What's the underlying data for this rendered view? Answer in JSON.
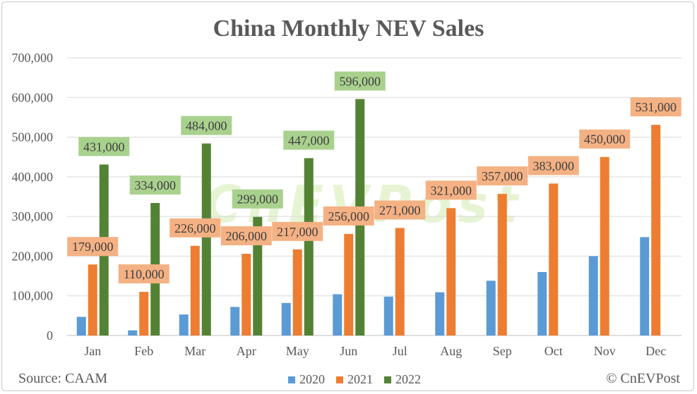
{
  "page": {
    "title": "China Monthly NEV Sales",
    "source": "Source: CAAM",
    "copyright": "© CnEVPost",
    "watermark": "CnEVPost"
  },
  "chart_data": {
    "type": "bar",
    "title": "China Monthly NEV Sales",
    "categories": [
      "Jan",
      "Feb",
      "Mar",
      "Apr",
      "May",
      "Jun",
      "Jul",
      "Aug",
      "Sep",
      "Oct",
      "Nov",
      "Dec"
    ],
    "ylim": [
      0,
      700000
    ],
    "yticks": [
      0,
      100000,
      200000,
      300000,
      400000,
      500000,
      600000,
      700000
    ],
    "ytick_labels": [
      "0",
      "100,000",
      "200,000",
      "300,000",
      "400,000",
      "500,000",
      "600,000",
      "700,000"
    ],
    "grid": true,
    "legend_position": "bottom",
    "series": [
      {
        "name": "2020",
        "color": "#5b9bd5",
        "values": [
          47000,
          13000,
          53000,
          72000,
          82000,
          104000,
          98000,
          109000,
          138000,
          160000,
          200000,
          248000
        ],
        "labels": null
      },
      {
        "name": "2021",
        "color": "#ed7d31",
        "label_bg": "#f4b183",
        "values": [
          179000,
          110000,
          226000,
          206000,
          217000,
          256000,
          271000,
          321000,
          357000,
          383000,
          450000,
          531000
        ],
        "labels": [
          "179,000",
          "110,000",
          "226,000",
          "206,000",
          "217,000",
          "256,000",
          "271,000",
          "321,000",
          "357,000",
          "383,000",
          "450,000",
          "531,000"
        ]
      },
      {
        "name": "2022",
        "color": "#548235",
        "label_bg": "#a9d18e",
        "values": [
          431000,
          334000,
          484000,
          299000,
          447000,
          596000,
          null,
          null,
          null,
          null,
          null,
          null
        ],
        "labels": [
          "431,000",
          "334,000",
          "484,000",
          "299,000",
          "447,000",
          "596,000",
          null,
          null,
          null,
          null,
          null,
          null
        ]
      }
    ]
  }
}
